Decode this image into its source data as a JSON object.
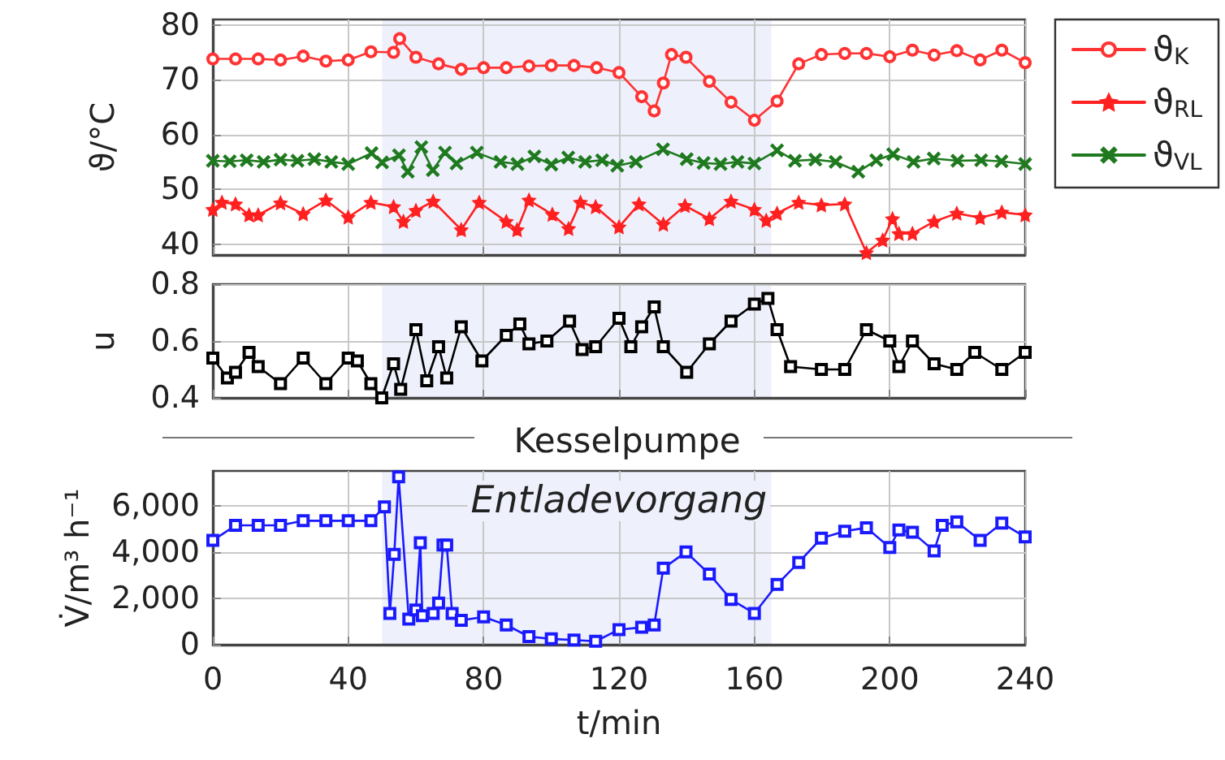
{
  "chart_data": [
    {
      "type": "line",
      "ylabel": "ϑ/°C",
      "xlim": [
        0,
        240
      ],
      "xticks": [
        0,
        40,
        80,
        120,
        160,
        200,
        240
      ],
      "ylim": [
        38,
        81
      ],
      "yticks": [
        40,
        50,
        60,
        70,
        80
      ],
      "grid": true,
      "tick_labels": "y",
      "legend": "top right",
      "bands": [
        {
          "axis": "x",
          "from": 50,
          "to": 165,
          "color": "#eef1fc"
        }
      ],
      "series": [
        {
          "name": "ϑ$_{K}$",
          "color": "#ff3333",
          "marker": "circle",
          "x": [
            0,
            6.7,
            13.4,
            20,
            26.7,
            33.4,
            40,
            46.7,
            53.4,
            55.2,
            60,
            66.7,
            73.4,
            80,
            86.7,
            93.4,
            100,
            106.7,
            113.4,
            120,
            126.7,
            130.4,
            133.1,
            135.5,
            139.8,
            146.7,
            153.1,
            160,
            166.7,
            173.1,
            179.8,
            186.7,
            193.1,
            200,
            206.7,
            213.1,
            219.8,
            226.7,
            233.1,
            240
          ],
          "values": [
            73.8,
            73.8,
            73.8,
            73.6,
            74.3,
            73.4,
            73.6,
            75.1,
            75,
            77.5,
            74.1,
            72.9,
            71.9,
            72.2,
            72.2,
            72.5,
            72.6,
            72.6,
            72.2,
            71.3,
            66.9,
            64.3,
            69.4,
            74.6,
            74.1,
            69.7,
            65.9,
            62.6,
            66.1,
            72.9,
            74.6,
            74.8,
            74.8,
            74.2,
            75.4,
            74.5,
            75.3,
            73.6,
            75.4,
            73.1
          ]
        },
        {
          "name": "ϑ$_{RL}$",
          "color": "#ff2020",
          "marker": "star",
          "x": [
            0,
            2.7,
            6.7,
            10.7,
            13.4,
            20,
            26.7,
            33.4,
            40,
            46.7,
            53.4,
            56.3,
            60,
            65.1,
            73.4,
            78.7,
            86.7,
            89.9,
            93.4,
            100.3,
            105.1,
            108.6,
            113.1,
            120,
            125.9,
            133.1,
            139.5,
            146.7,
            153.1,
            160,
            163.5,
            166.7,
            173.1,
            179.8,
            186.7,
            193.1,
            197.9,
            200.8,
            202.7,
            206.7,
            213.1,
            219.8,
            226.7,
            233.1,
            240
          ],
          "values": [
            46.3,
            47.6,
            47.3,
            45.3,
            45.3,
            47.5,
            45.5,
            48,
            44.9,
            47.6,
            46.8,
            44.1,
            46.1,
            47.8,
            42.6,
            47.6,
            44.1,
            42.6,
            48,
            45.4,
            42.8,
            47.6,
            46.8,
            43.1,
            47.3,
            43.6,
            47,
            44.6,
            47.8,
            46.3,
            44.3,
            45.6,
            47.6,
            47.1,
            47.3,
            38.4,
            40.7,
            44.6,
            41.9,
            41.9,
            44.1,
            45.6,
            44.8,
            45.8,
            45.3
          ]
        },
        {
          "name": "ϑ$_{VL}$",
          "color": "#1f7a1f",
          "marker": "cross",
          "x": [
            0,
            5,
            10,
            15,
            20,
            25,
            30,
            35,
            40,
            46.9,
            50,
            55,
            57.6,
            61.6,
            65,
            68.6,
            72,
            78,
            85,
            90,
            95,
            100,
            105,
            110,
            115,
            119.5,
            125,
            133,
            140,
            145,
            150,
            155,
            160,
            166.7,
            172,
            178,
            184,
            190.7,
            196,
            201,
            207,
            213,
            220,
            227,
            233,
            240
          ],
          "values": [
            55.2,
            55.1,
            55.3,
            55,
            55.4,
            55.2,
            55.5,
            55,
            54.6,
            56.6,
            54.9,
            56.2,
            53.2,
            57.7,
            53.5,
            56.7,
            54.7,
            56.7,
            55,
            54.6,
            56,
            54.5,
            55.8,
            55,
            55.3,
            54.3,
            55,
            57.3,
            55.5,
            54.8,
            54.6,
            55,
            54.7,
            57.1,
            55.2,
            55.4,
            55,
            53.2,
            55.3,
            56.4,
            55,
            55.6,
            55.2,
            55.3,
            55.1,
            54.6
          ]
        }
      ]
    },
    {
      "type": "line",
      "ylabel": "u",
      "xlim": [
        0,
        240
      ],
      "xticks": [
        0,
        40,
        80,
        120,
        160,
        200,
        240
      ],
      "ylim": [
        0.4,
        0.8
      ],
      "yticks": [
        0.4,
        0.6,
        0.8
      ],
      "grid": true,
      "tick_labels": "y",
      "marker": "square",
      "bands": [
        {
          "axis": "x",
          "from": 50,
          "to": 165,
          "color": "#eef1fc"
        }
      ],
      "series": [
        {
          "color": "#000000",
          "x": [
            0,
            4.3,
            6.7,
            10.7,
            13.4,
            20,
            26.7,
            33.4,
            40,
            42.7,
            46.7,
            49.9,
            53.4,
            55.5,
            60,
            63.2,
            66.7,
            69.1,
            73.4,
            79.5,
            86.7,
            90.7,
            93.4,
            98.7,
            105.4,
            109.1,
            113.1,
            120,
            123.5,
            126.7,
            130.4,
            133.1,
            140,
            146.7,
            153.1,
            160,
            164,
            166.7,
            170.7,
            179.8,
            186.7,
            193.1,
            200,
            202.7,
            206.7,
            213.1,
            219.8,
            225.1,
            233.1,
            240
          ],
          "values": [
            0.54,
            0.47,
            0.49,
            0.56,
            0.51,
            0.45,
            0.54,
            0.45,
            0.54,
            0.53,
            0.45,
            0.4,
            0.52,
            0.43,
            0.64,
            0.46,
            0.58,
            0.47,
            0.65,
            0.53,
            0.62,
            0.66,
            0.59,
            0.6,
            0.67,
            0.57,
            0.58,
            0.68,
            0.58,
            0.65,
            0.72,
            0.58,
            0.49,
            0.59,
            0.67,
            0.73,
            0.75,
            0.64,
            0.51,
            0.5,
            0.5,
            0.64,
            0.6,
            0.51,
            0.6,
            0.52,
            0.5,
            0.56,
            0.5,
            0.56
          ]
        }
      ]
    },
    {
      "type": "line",
      "title": "Kesselpumpe",
      "xlabel": "t/min",
      "ylabel": "V̇/m³ h⁻¹",
      "xlim": [
        0,
        240
      ],
      "xticks": [
        0,
        40,
        80,
        120,
        160,
        200,
        240
      ],
      "ylim": [
        0,
        7500
      ],
      "yticks": [
        0,
        {
          "value": 2000,
          "label": "2,000"
        },
        {
          "value": 4000,
          "label": "4,000"
        },
        {
          "value": 6000,
          "label": "6,000"
        }
      ],
      "grid": true,
      "marker": "square",
      "bands": [
        {
          "axis": "x",
          "from": 50,
          "to": 165,
          "color": "#eef1fc",
          "label": "Entladevorgang"
        }
      ],
      "series": [
        {
          "color": "#1a1aff",
          "x": [
            0,
            6.7,
            13.4,
            20,
            26.7,
            33.4,
            40,
            46.7,
            50.7,
            52.3,
            53.6,
            54.9,
            57.9,
            60,
            61.3,
            61.9,
            65.1,
            66.7,
            68,
            69.1,
            70.7,
            73.4,
            80,
            86.7,
            93.4,
            100,
            106.7,
            113.1,
            120,
            126.7,
            130.4,
            133.1,
            139.8,
            146.7,
            153.1,
            160,
            166.7,
            173.1,
            179.8,
            186.7,
            193.1,
            200,
            202.7,
            206.7,
            213.1,
            215.5,
            219.8,
            226.7,
            233.1,
            240
          ],
          "values": [
            4500,
            5150,
            5150,
            5150,
            5350,
            5350,
            5350,
            5350,
            5950,
            1350,
            3900,
            7250,
            1100,
            1500,
            4400,
            1250,
            1350,
            1800,
            4300,
            4300,
            1350,
            1050,
            1200,
            850,
            350,
            250,
            200,
            150,
            650,
            750,
            850,
            3300,
            4000,
            3050,
            1950,
            1350,
            2600,
            3550,
            4600,
            4900,
            5050,
            4200,
            4950,
            4850,
            4050,
            5150,
            5300,
            4500,
            5250,
            4650
          ]
        }
      ]
    }
  ]
}
